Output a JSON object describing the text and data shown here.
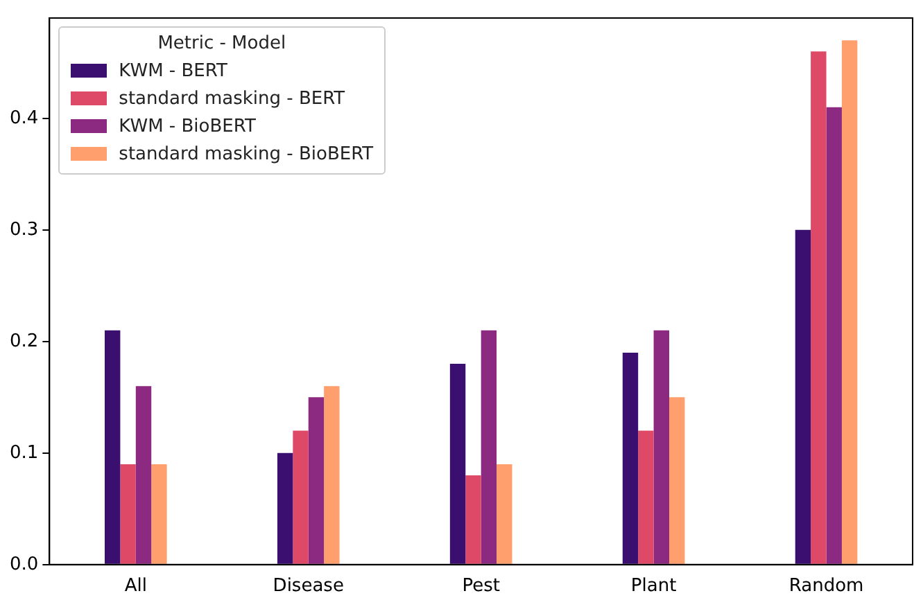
{
  "chart_data": {
    "type": "bar",
    "legend_title": "Metric - Model",
    "categories": [
      "All",
      "Disease",
      "Pest",
      "Plant",
      "Random"
    ],
    "series": [
      {
        "name": "KWM - BERT",
        "color": "#3b0f70",
        "values": [
          0.21,
          0.1,
          0.18,
          0.19,
          0.3
        ]
      },
      {
        "name": "standard masking - BERT",
        "color": "#de4968",
        "values": [
          0.09,
          0.12,
          0.08,
          0.12,
          0.46
        ]
      },
      {
        "name": "KWM - BioBERT",
        "color": "#8c2981",
        "values": [
          0.16,
          0.15,
          0.21,
          0.21,
          0.41
        ]
      },
      {
        "name": "standard masking - BioBERT",
        "color": "#fe9f6d",
        "values": [
          0.09,
          0.16,
          0.09,
          0.15,
          0.47
        ]
      }
    ],
    "ylim": [
      0,
      0.49
    ],
    "yticks": [
      {
        "value": 0,
        "label": "0.0"
      },
      {
        "value": 0.1,
        "label": "0.1"
      },
      {
        "value": 0.2,
        "label": "0.2"
      },
      {
        "value": 0.3,
        "label": "0.3"
      },
      {
        "value": 0.4,
        "label": "0.4"
      }
    ],
    "legend": "top left"
  }
}
